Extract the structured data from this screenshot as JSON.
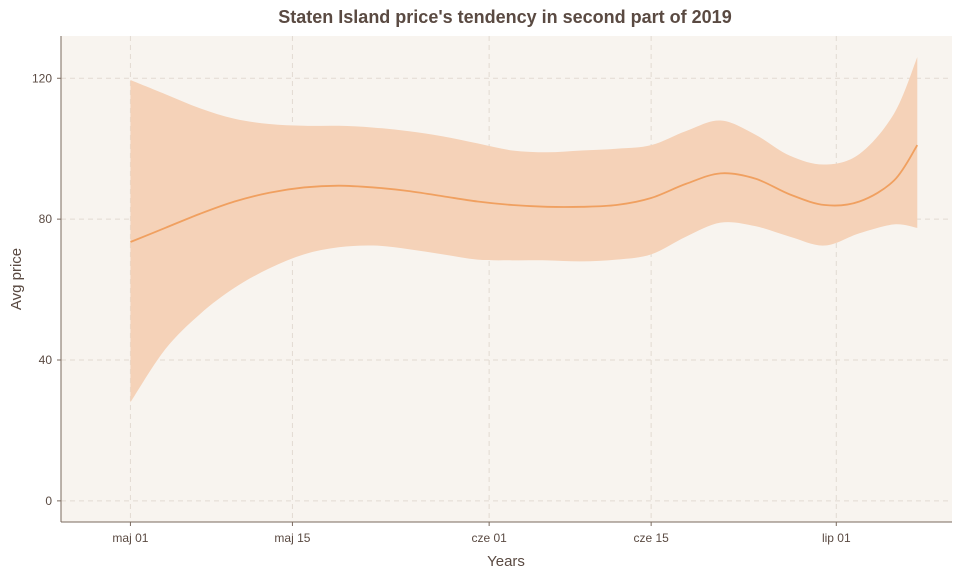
{
  "chart_data": {
    "type": "line",
    "title": "Staten Island price's tendency in second part of 2019",
    "xlabel": "Years",
    "ylabel": "Avg price",
    "x_ticks": [
      "maj 01",
      "maj 15",
      "cze 01",
      "cze 15",
      "lip 01"
    ],
    "x_tick_dates": [
      "2019-05-01",
      "2019-05-15",
      "2019-06-01",
      "2019-06-15",
      "2019-07-01"
    ],
    "xlim": [
      "2019-04-25",
      "2019-07-11"
    ],
    "y_ticks": [
      0,
      40,
      80,
      120
    ],
    "ylim": [
      -6,
      132
    ],
    "grid": true,
    "colors": {
      "panel_background": "#f8f4ef",
      "line": "#f0a060",
      "band": "#f5d2b8",
      "text": "#5a4a42"
    },
    "series": [
      {
        "type": "smooth-with-ci",
        "x": [
          "2019-05-01",
          "2019-05-04",
          "2019-05-07",
          "2019-05-10",
          "2019-05-13",
          "2019-05-16",
          "2019-05-19",
          "2019-05-22",
          "2019-05-25",
          "2019-05-28",
          "2019-05-31",
          "2019-06-03",
          "2019-06-06",
          "2019-06-09",
          "2019-06-12",
          "2019-06-15",
          "2019-06-18",
          "2019-06-21",
          "2019-06-24",
          "2019-06-27",
          "2019-06-30",
          "2019-07-03",
          "2019-07-06",
          "2019-07-08"
        ],
        "y": [
          73.5,
          77.5,
          81.5,
          85,
          87.5,
          89,
          89.5,
          89,
          88,
          86.5,
          85,
          84,
          83.5,
          83.5,
          84,
          86,
          90,
          93,
          91.5,
          87,
          84,
          85,
          91,
          101
        ],
        "lower": [
          28,
          43,
          53,
          60.5,
          66,
          70,
          72,
          72.5,
          71.5,
          70,
          68.5,
          68.3,
          68.3,
          68,
          68.5,
          70,
          75,
          79,
          78,
          75,
          72.5,
          76,
          78.5,
          77.5
        ],
        "upper": [
          119.5,
          115.5,
          111.5,
          108.5,
          107,
          106.5,
          106.5,
          106,
          105,
          103.5,
          101.5,
          99.5,
          99,
          99.5,
          100,
          101,
          105,
          108,
          104,
          98,
          95.5,
          98.5,
          110,
          126
        ]
      }
    ]
  }
}
